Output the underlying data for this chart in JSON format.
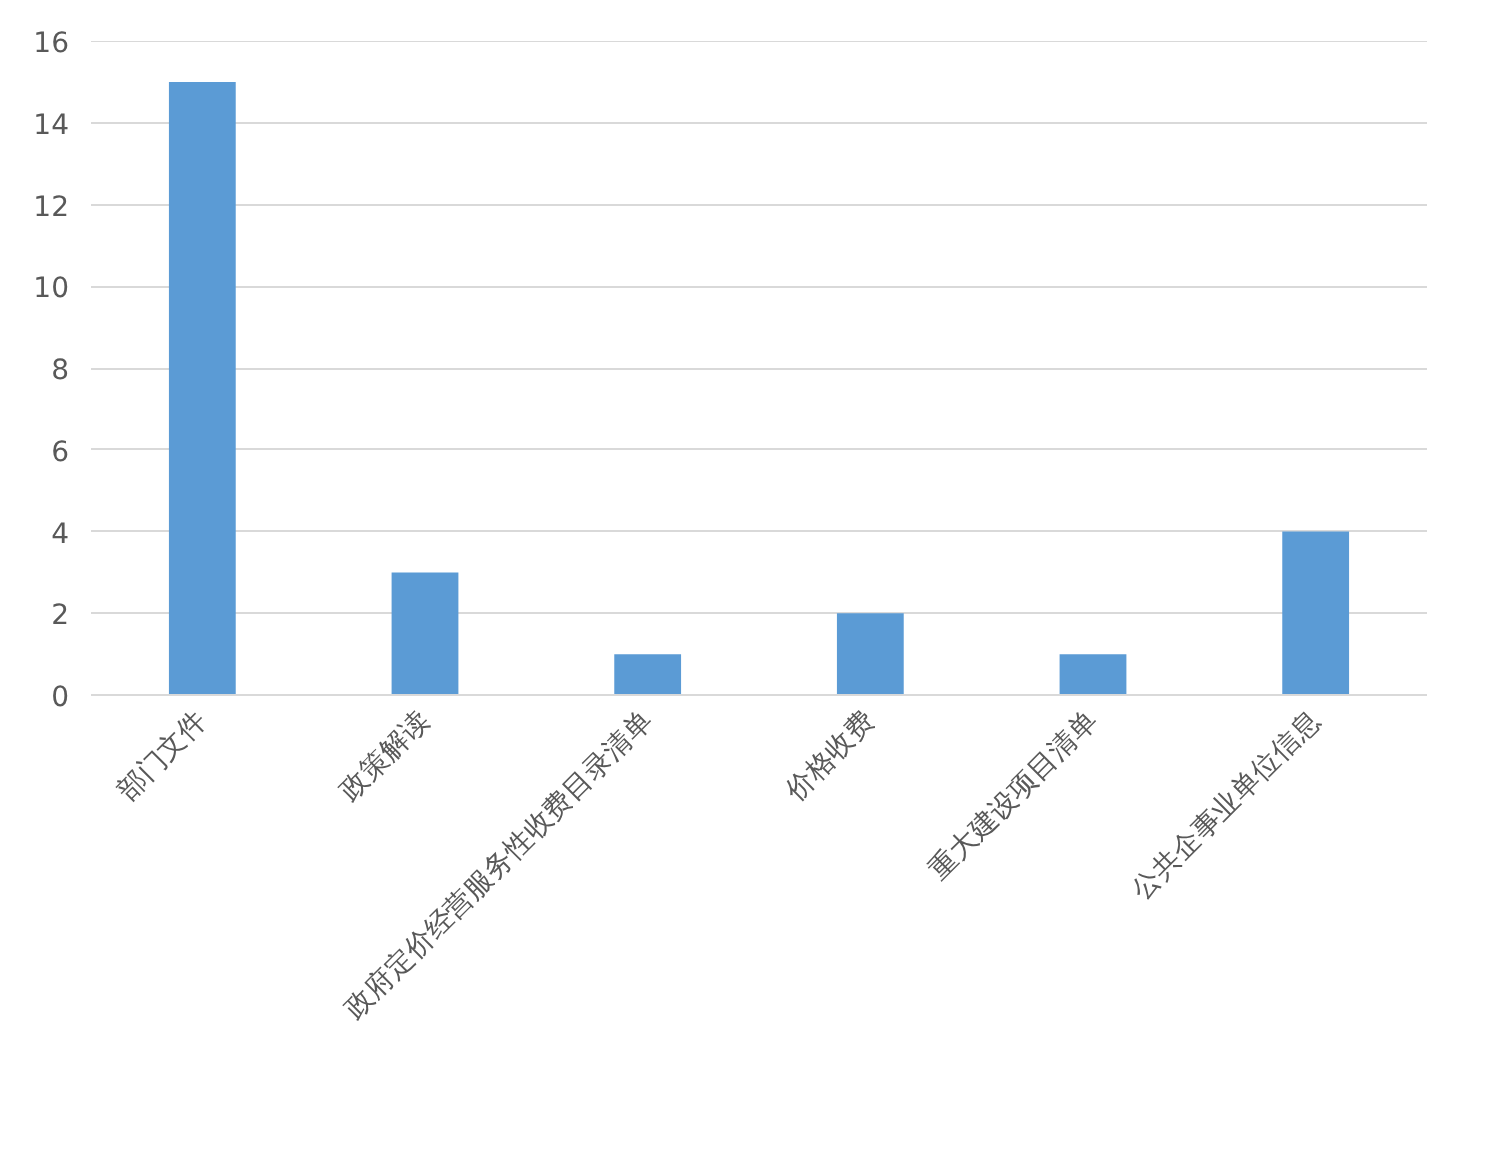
{
  "chart_data": {
    "type": "bar",
    "categories": [
      "部门文件",
      "政策解读",
      "政府定价经营服务性收费目录清单",
      "价格收费",
      "重大建设项目清单",
      "公共企事业单位信息"
    ],
    "values": [
      15,
      3,
      1,
      2,
      1,
      4
    ],
    "color": "#5b9bd5",
    "ylim": [
      0,
      16
    ],
    "yticks": [
      0,
      2,
      4,
      6,
      8,
      10,
      12,
      14,
      16
    ],
    "grid": "y"
  }
}
